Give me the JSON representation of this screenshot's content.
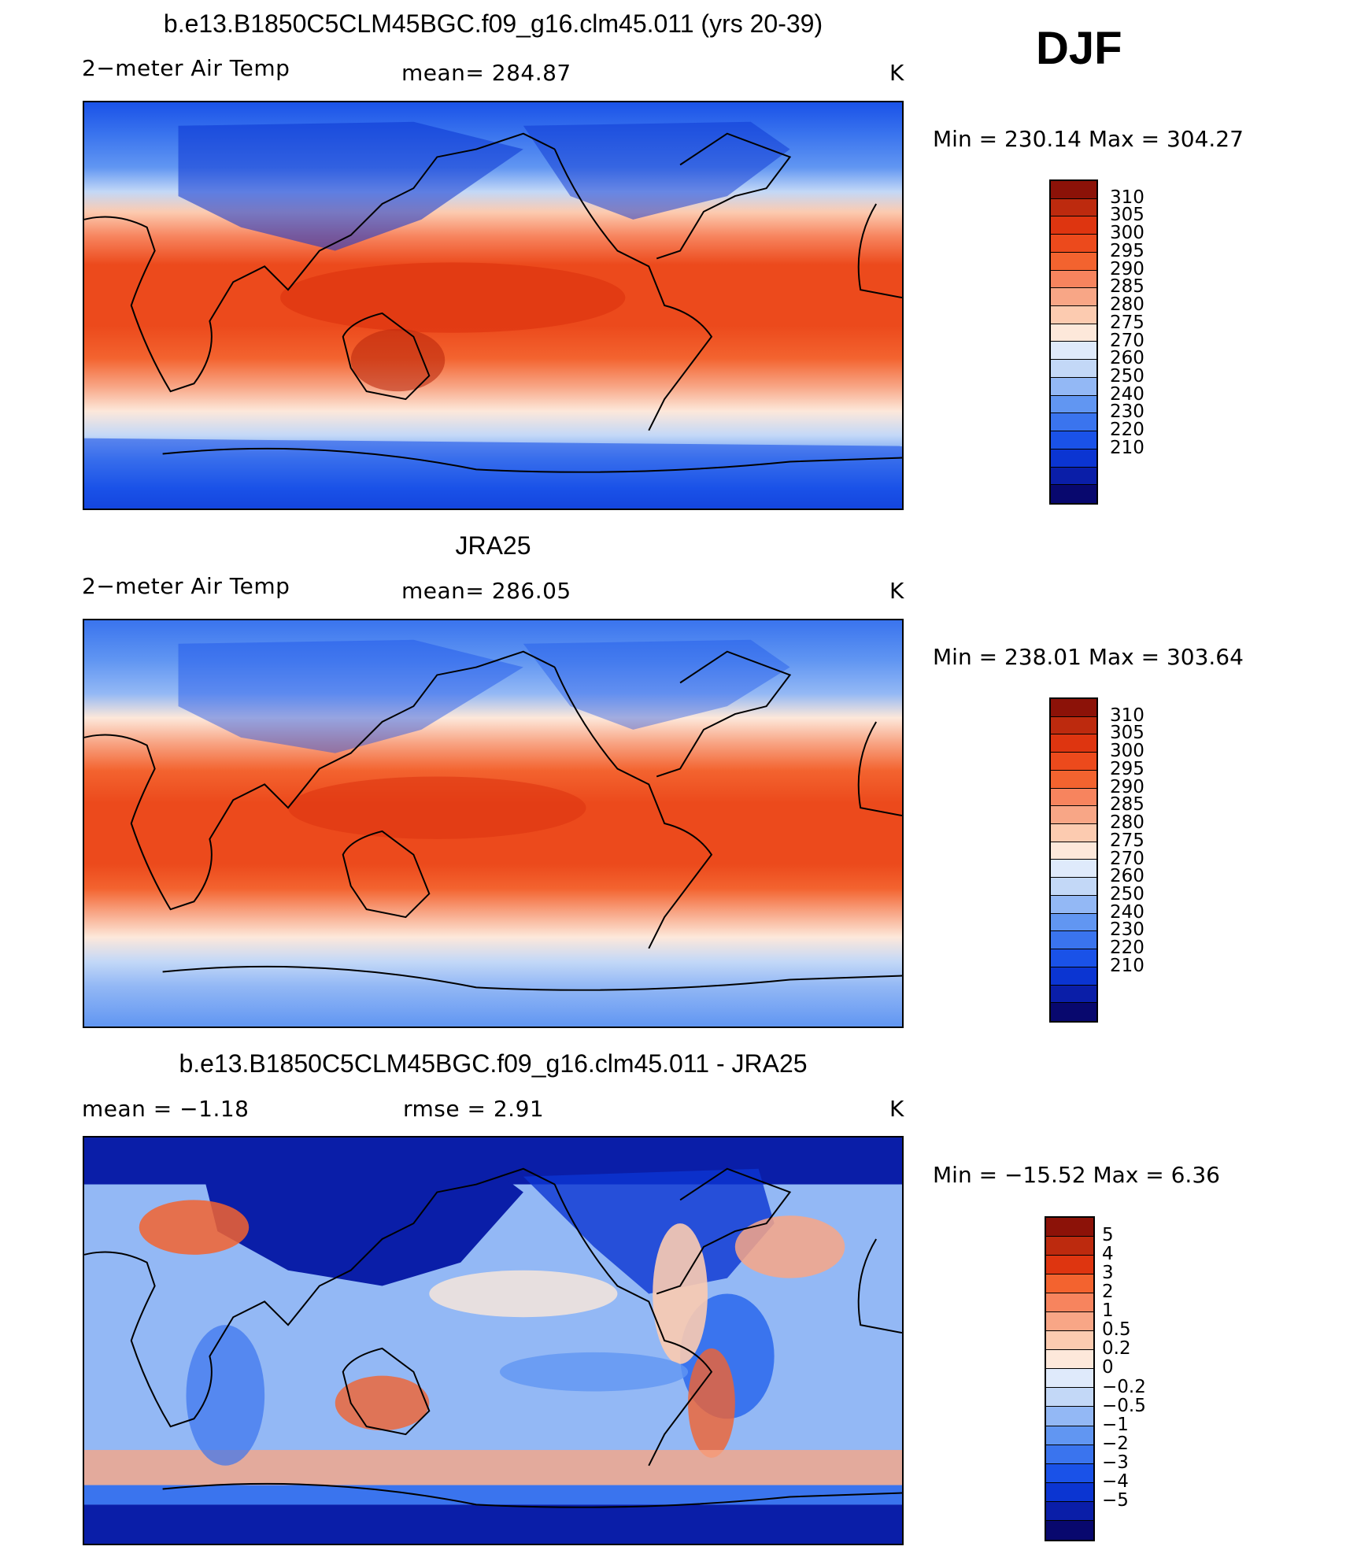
{
  "season": "DJF",
  "palette_temp": [
    "#08086e",
    "#0a1ea8",
    "#0b35d2",
    "#1a52e8",
    "#3a74ee",
    "#6196f2",
    "#93b8f5",
    "#c3d8f7",
    "#dfeafb",
    "#fde8da",
    "#fccbb0",
    "#f8a686",
    "#f7845e",
    "#f3632f",
    "#ec4a1c",
    "#de3510",
    "#bd2a0e",
    "#8c1208"
  ],
  "palette_diff": [
    "#08086e",
    "#0a1ea8",
    "#0b35d2",
    "#1a52e8",
    "#3a74ee",
    "#6196f2",
    "#93b8f5",
    "#c3d8f7",
    "#dfeafb",
    "#fde8da",
    "#fccbb0",
    "#f8a686",
    "#f7845e",
    "#f3632f",
    "#de3510",
    "#bd2a0e",
    "#8c1208"
  ],
  "panels": [
    {
      "title": "b.e13.B1850C5CLM45BGC.f09_g16.clm45.011 (yrs 20-39)",
      "left_label": "2−meter Air Temp",
      "center_label": "mean=  284.87",
      "units": "K",
      "minmax": "Min  =  230.14  Max  =  304.27",
      "colorbar_labels": [
        "310",
        "305",
        "300",
        "295",
        "290",
        "285",
        "280",
        "275",
        "270",
        "260",
        "250",
        "240",
        "230",
        "220",
        "210"
      ]
    },
    {
      "title": "JRA25",
      "left_label": "2−meter Air Temp",
      "center_label": "mean=  286.05",
      "units": "K",
      "minmax": "Min  =  238.01  Max  =  303.64",
      "colorbar_labels": [
        "310",
        "305",
        "300",
        "295",
        "290",
        "285",
        "280",
        "275",
        "270",
        "260",
        "250",
        "240",
        "230",
        "220",
        "210"
      ]
    },
    {
      "title": "b.e13.B1850C5CLM45BGC.f09_g16.clm45.011 - JRA25",
      "left_label": "mean  =    −1.18",
      "center_label": "rmse  =     2.91",
      "units": "K",
      "minmax": "Min  =  −15.52  Max  =      6.36",
      "colorbar_labels": [
        "5",
        "4",
        "3",
        "2",
        "1",
        "0.5",
        "0.2",
        "0",
        "−0.2",
        "−0.5",
        "−1",
        "−2",
        "−3",
        "−4",
        "−5"
      ]
    }
  ]
}
